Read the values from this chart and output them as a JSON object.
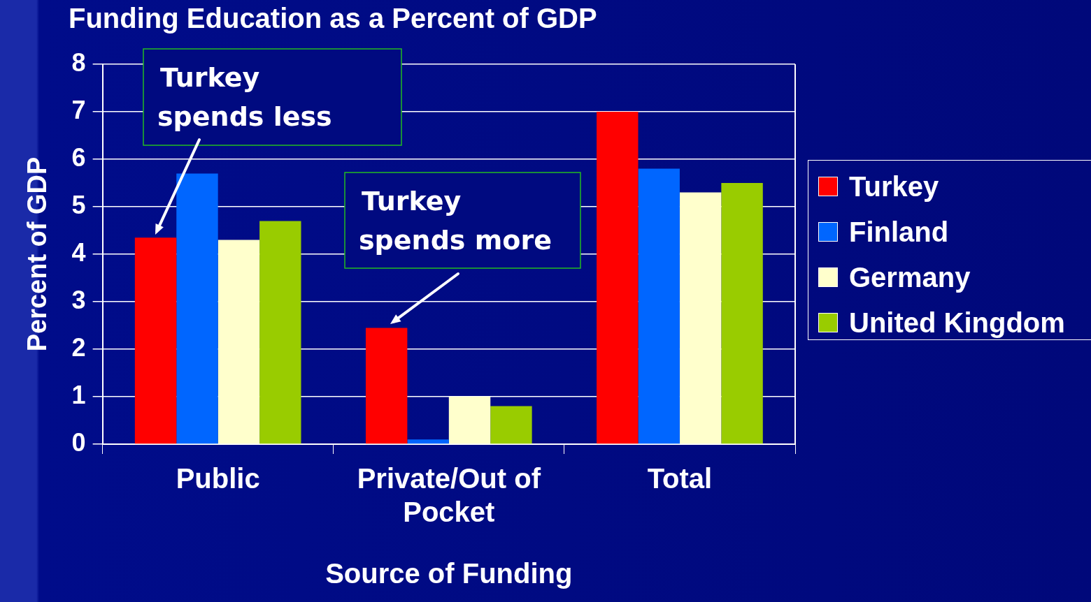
{
  "chart_data": {
    "type": "bar",
    "title": "Funding Education as a Percent of GDP",
    "xlabel": "Source of Funding",
    "ylabel": "Percent of GDP",
    "categories": [
      "Public",
      "Private/Out of Pocket",
      "Total"
    ],
    "series": [
      {
        "name": "Turkey",
        "color": "#ff0000",
        "values": [
          4.35,
          2.45,
          7.0
        ]
      },
      {
        "name": "Finland",
        "color": "#0066ff",
        "values": [
          5.7,
          0.1,
          5.8
        ]
      },
      {
        "name": "Germany",
        "color": "#ffffcc",
        "values": [
          4.3,
          1.0,
          5.3
        ]
      },
      {
        "name": "United Kingdom",
        "color": "#99cc00",
        "values": [
          4.7,
          0.8,
          5.5
        ]
      }
    ],
    "ylim": [
      0,
      8
    ],
    "yticks": [
      0,
      1,
      2,
      3,
      4,
      5,
      6,
      7,
      8
    ],
    "grid": "y",
    "legend": "right",
    "annotations": [
      "Turkey spends less",
      "Turkey spends more"
    ]
  }
}
